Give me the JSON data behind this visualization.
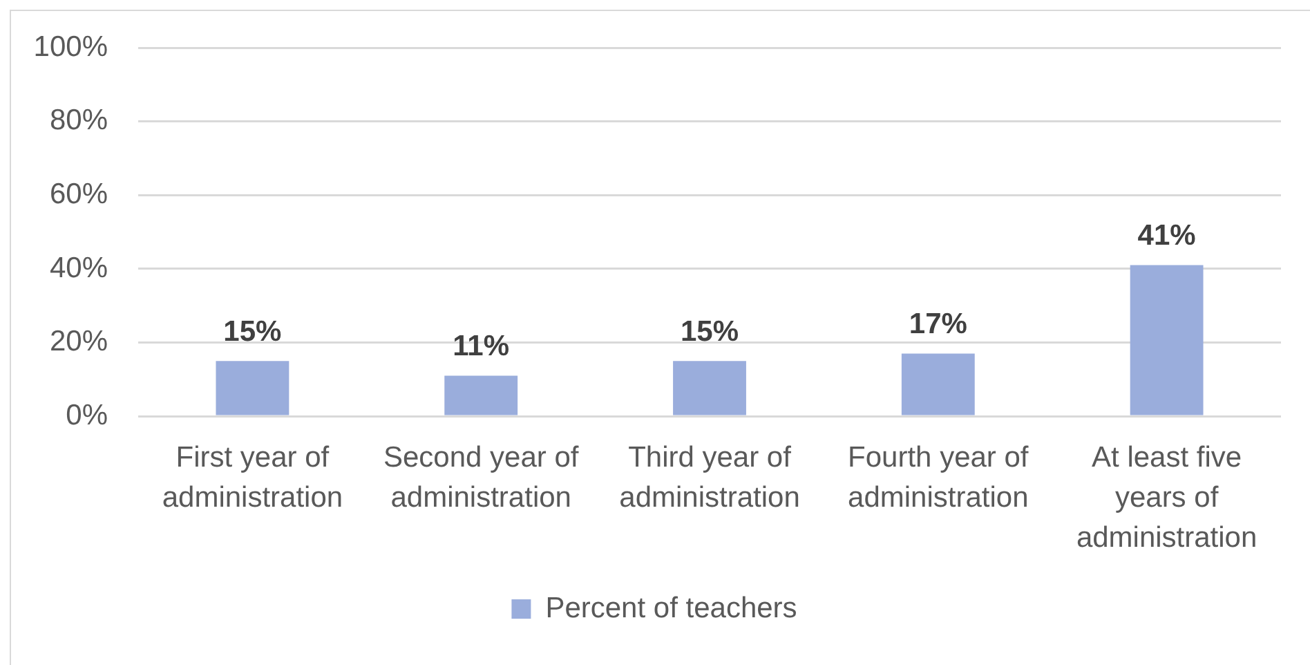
{
  "chart_data": {
    "type": "bar",
    "categories": [
      "First year of administration",
      "Second year of administration",
      "Third year of administration",
      "Fourth year of administration",
      "At least five years of administration"
    ],
    "series": [
      {
        "name": "Percent of teachers",
        "color": "#9aaddc",
        "values": [
          15,
          11,
          15,
          17,
          41
        ],
        "value_labels": [
          "15%",
          "11%",
          "15%",
          "17%",
          "41%"
        ]
      }
    ],
    "ylim": [
      0,
      100
    ],
    "yticks": [
      {
        "value": 0,
        "label": "0%"
      },
      {
        "value": 20,
        "label": "20%"
      },
      {
        "value": 40,
        "label": "40%"
      },
      {
        "value": 60,
        "label": "60%"
      },
      {
        "value": 80,
        "label": "80%"
      },
      {
        "value": 100,
        "label": "100%"
      }
    ],
    "grid": "y",
    "legend": "bottom"
  }
}
